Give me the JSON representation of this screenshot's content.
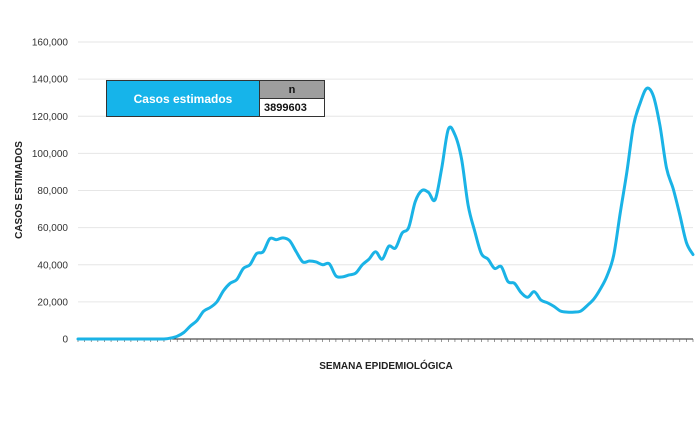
{
  "chart_data": {
    "type": "line",
    "title": "",
    "xlabel": "SEMANA EPIDEMIOLÓGICA",
    "ylabel": "CASOS ESTIMADOS",
    "ylim": [
      0,
      160000
    ],
    "yticks": [
      "0",
      "20,000",
      "40,000",
      "60,000",
      "80,000",
      "100,000",
      "120,000",
      "140,000",
      "160,000"
    ],
    "grid": true,
    "line_color": "#1ab3e6",
    "legend_color": "#16b4ea",
    "series": [
      {
        "values": [
          0,
          0,
          0,
          0,
          0,
          0,
          0,
          0,
          0,
          0,
          0,
          0,
          0,
          0,
          500,
          1500,
          3500,
          7000,
          10000,
          15000,
          17000,
          20000,
          26000,
          30000,
          32000,
          38000,
          40000,
          46000,
          47000,
          54000,
          53500,
          54500,
          53000,
          47000,
          41500,
          42000,
          41500,
          40000,
          40500,
          34000,
          33500,
          34500,
          35500,
          40000,
          43000,
          47000,
          43000,
          50000,
          49000,
          57000,
          60000,
          74000,
          80000,
          79000,
          75000,
          92000,
          113000,
          110000,
          97000,
          72000,
          58000,
          46000,
          43000,
          38000,
          39000,
          31000,
          30000,
          25000,
          22500,
          25500,
          21000,
          19500,
          17500,
          15000,
          14500,
          14500,
          15000,
          18000,
          21500,
          27000,
          34000,
          45000,
          68000,
          90000,
          115000,
          127000,
          135000,
          131000,
          115000,
          92000,
          81000,
          67000,
          52000,
          45500
        ]
      }
    ]
  },
  "legend_box": {
    "label": "Casos estimados",
    "n_header": "n",
    "n_value": "3899603"
  }
}
